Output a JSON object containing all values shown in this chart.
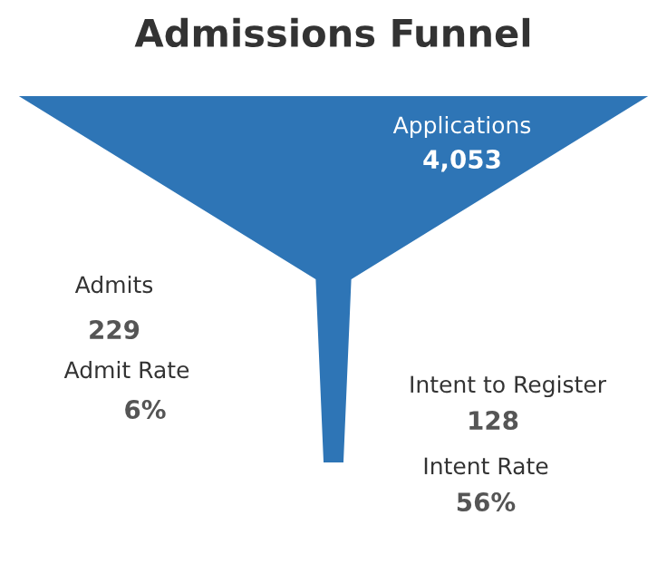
{
  "chart_data": {
    "type": "other",
    "title": "Admissions Funnel",
    "categories": [
      "Applications",
      "Admits",
      "Intent to Register"
    ],
    "values": [
      4053,
      229,
      128
    ],
    "value_labels": [
      "4,053",
      "229",
      "128"
    ],
    "color": "#2e75b6",
    "annotations": [
      "Admit Rate",
      "6%",
      "Intent Rate",
      "56%"
    ]
  }
}
